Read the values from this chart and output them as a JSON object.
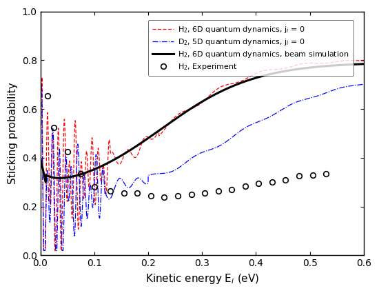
{
  "xlabel": "Kinetic energy E$_i$ (eV)",
  "ylabel": "Sticking probability",
  "xlim": [
    0.0,
    0.6
  ],
  "ylim": [
    0.0,
    1.0
  ],
  "xticks": [
    0.0,
    0.1,
    0.2,
    0.3,
    0.4,
    0.5,
    0.6
  ],
  "yticks": [
    0.0,
    0.2,
    0.4,
    0.6,
    0.8,
    1.0
  ],
  "legend_labels": [
    "H$_2$, Experiment",
    "H$_2$, 6D quantum dynamics, j$_i$ = 0",
    "H$_2$, 6D quantum dynamics, beam simulation",
    "D$_2$, 5D quantum dynamics, j$_i$ = 0"
  ],
  "exp_x": [
    0.013,
    0.025,
    0.05,
    0.075,
    0.1,
    0.13,
    0.155,
    0.18,
    0.205,
    0.23,
    0.255,
    0.28,
    0.305,
    0.33,
    0.355,
    0.38,
    0.405,
    0.43,
    0.455,
    0.48,
    0.505,
    0.53
  ],
  "exp_y": [
    0.655,
    0.525,
    0.425,
    0.335,
    0.28,
    0.265,
    0.255,
    0.255,
    0.245,
    0.24,
    0.245,
    0.25,
    0.255,
    0.265,
    0.27,
    0.285,
    0.295,
    0.3,
    0.31,
    0.325,
    0.33,
    0.335
  ],
  "figsize": [
    5.5,
    4.25
  ],
  "dpi": 100
}
